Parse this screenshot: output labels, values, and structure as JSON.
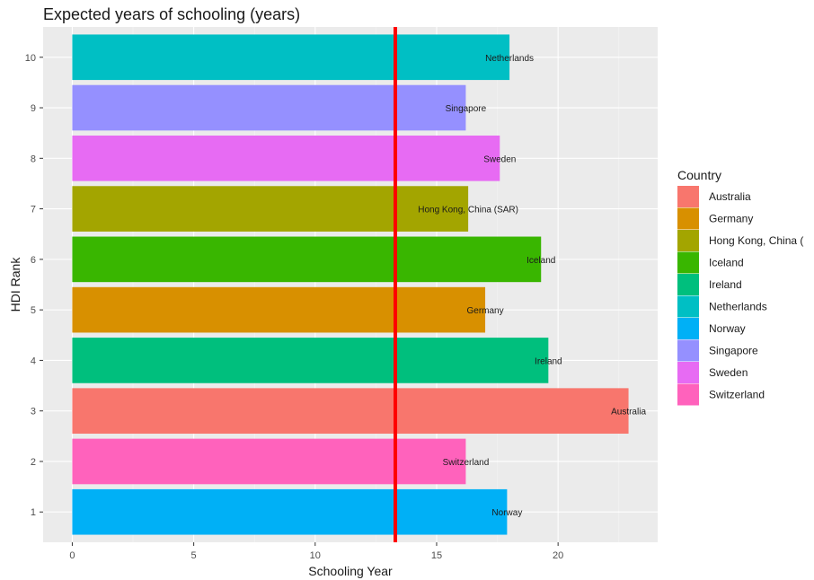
{
  "chart_data": {
    "type": "bar",
    "orientation": "horizontal",
    "title": "Expected years of schooling (years)",
    "xlabel": "Schooling Year",
    "ylabel": "HDI Rank",
    "xlim": [
      -1.2,
      24.1
    ],
    "ylim": [
      0.4,
      10.6
    ],
    "x_ticks": [
      "0",
      "5",
      "10",
      "15",
      "20"
    ],
    "y_ticks": [
      "1",
      "2",
      "3",
      "4",
      "5",
      "6",
      "7",
      "8",
      "9",
      "10"
    ],
    "grid": true,
    "reference_line": {
      "x": 13.3,
      "color": "#ff0000"
    },
    "bars": [
      {
        "rank": 1,
        "country": "Norway",
        "value": 17.9,
        "label": "Norway"
      },
      {
        "rank": 2,
        "country": "Switzerland",
        "value": 16.2,
        "label": "Switzerland"
      },
      {
        "rank": 3,
        "country": "Australia",
        "value": 22.9,
        "label": "Australia"
      },
      {
        "rank": 4,
        "country": "Ireland",
        "value": 19.6,
        "label": "Ireland"
      },
      {
        "rank": 5,
        "country": "Germany",
        "value": 17.0,
        "label": "Germany"
      },
      {
        "rank": 6,
        "country": "Iceland",
        "value": 19.3,
        "label": "Iceland"
      },
      {
        "rank": 7,
        "country": "Hong Kong, China (SAR)",
        "value": 16.3,
        "label": "Hong Kong, China (SAR)"
      },
      {
        "rank": 8,
        "country": "Sweden",
        "value": 17.6,
        "label": "Sweden"
      },
      {
        "rank": 9,
        "country": "Singapore",
        "value": 16.2,
        "label": "Singapore"
      },
      {
        "rank": 10,
        "country": "Netherlands",
        "value": 18.0,
        "label": "Netherlands"
      }
    ],
    "legend": {
      "title": "Country",
      "placement": "right",
      "items": [
        {
          "label": "Australia",
          "color": "#F8766D"
        },
        {
          "label": "Germany",
          "color": "#D89000"
        },
        {
          "label": "Hong Kong, China (",
          "color": "#A3A500"
        },
        {
          "label": "Iceland",
          "color": "#39B600"
        },
        {
          "label": "Ireland",
          "color": "#00BF7D"
        },
        {
          "label": "Netherlands",
          "color": "#00BFC4"
        },
        {
          "label": "Norway",
          "color": "#00B0F6"
        },
        {
          "label": "Singapore",
          "color": "#9590FF"
        },
        {
          "label": "Sweden",
          "color": "#E76BF3"
        },
        {
          "label": "Switzerland",
          "color": "#FF62BC"
        }
      ]
    }
  }
}
